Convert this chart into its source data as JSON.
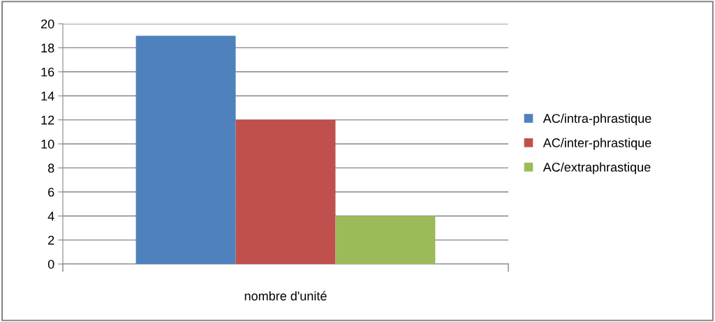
{
  "chart_data": {
    "type": "bar",
    "categories": [
      "nombre d'unité"
    ],
    "series": [
      {
        "name": "AC/intra-phrastique",
        "color": "#4f81bd",
        "values": [
          19
        ]
      },
      {
        "name": "AC/inter-phrastique",
        "color": "#c0504d",
        "values": [
          12
        ]
      },
      {
        "name": "AC/extraphrastique",
        "color": "#9bbb59",
        "values": [
          4
        ]
      }
    ],
    "ylim": [
      0,
      20
    ],
    "yticks": [
      0,
      2,
      4,
      6,
      8,
      10,
      12,
      14,
      16,
      18,
      20
    ],
    "grid": "y",
    "legend": "right"
  }
}
